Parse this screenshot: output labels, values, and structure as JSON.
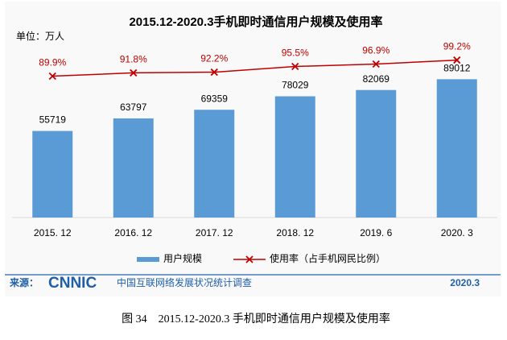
{
  "chart_data": {
    "type": "bar",
    "title": "2015.12-2020.3手机即时通信用户规模及使用率",
    "unit_label": "单位：万人",
    "categories": [
      "2015. 12",
      "2016. 12",
      "2017. 12",
      "2018. 12",
      "2019. 6",
      "2020. 3"
    ],
    "series": [
      {
        "name": "用户规模",
        "type": "bar",
        "color": "#5b9bd5",
        "values": [
          55719,
          63797,
          69359,
          78029,
          82069,
          89012
        ]
      },
      {
        "name": "使用率（占手机网民比例）",
        "type": "line",
        "axis": "y2",
        "color": "#c00000",
        "values": [
          89.9,
          91.8,
          92.2,
          95.5,
          96.9,
          99.2
        ],
        "value_labels": [
          "89.9%",
          "91.8%",
          "92.2%",
          "95.5%",
          "96.9%",
          "99.2%"
        ]
      }
    ],
    "ylim": [
      0,
      140000
    ],
    "y2lim": [
      8,
      134
    ],
    "legend": "bottom",
    "source_label": "来源：",
    "source_logo": "CNNIC",
    "source_text": "中国互联网络发展状况统计调查",
    "source_date": "2020.3",
    "caption": "图 34　2015.12-2020.3 手机即时通信用户规模及使用率"
  }
}
